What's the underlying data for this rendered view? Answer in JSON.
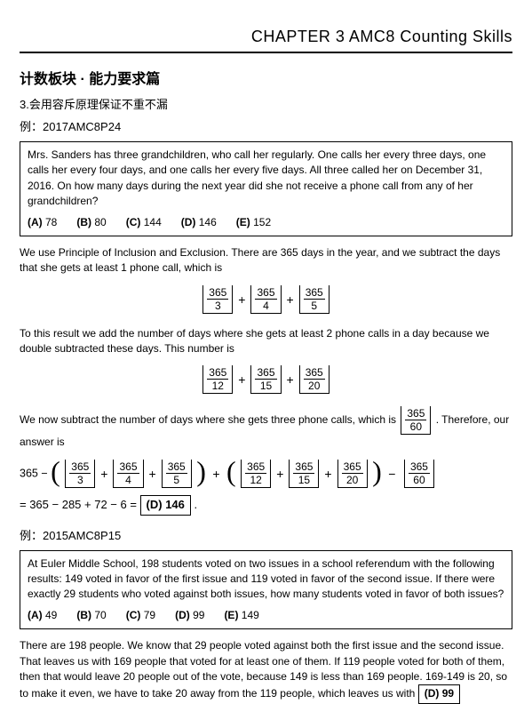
{
  "header": {
    "chapter": "CHAPTER 3 AMC8 Counting Skills"
  },
  "section": {
    "title": "计数板块 · 能力要求篇",
    "subpoint": "3.会用容斥原理保证不重不漏"
  },
  "ex1": {
    "label": "例：2017AMC8P24",
    "problem": "Mrs. Sanders has three grandchildren, who call her regularly. One calls her every three days, one calls her every four days, and one calls her every five days. All three called her on December 31, 2016. On how many days during the next year did she not receive a phone call from any of her grandchildren?",
    "choices": [
      {
        "lbl": "(A)",
        "val": "78"
      },
      {
        "lbl": "(B)",
        "val": "80"
      },
      {
        "lbl": "(C)",
        "val": "144"
      },
      {
        "lbl": "(D)",
        "val": "146"
      },
      {
        "lbl": "(E)",
        "val": "152"
      }
    ],
    "sol_p1": "We use Principle of Inclusion and Exclusion. There are 365 days in the year, and we subtract the days that she gets at least 1 phone call, which is",
    "floor1": [
      {
        "n": "365",
        "d": "3"
      },
      {
        "n": "365",
        "d": "4"
      },
      {
        "n": "365",
        "d": "5"
      }
    ],
    "sol_p2": "To this result we add the number of days where she gets at least 2 phone calls in a day because we double subtracted these days. This number is",
    "floor2": [
      {
        "n": "365",
        "d": "12"
      },
      {
        "n": "365",
        "d": "15"
      },
      {
        "n": "365",
        "d": "20"
      }
    ],
    "sol_p3a": "We now subtract the number of days where she gets three phone calls, which is ",
    "floor3": {
      "n": "365",
      "d": "60"
    },
    "sol_p3b": ". Therefore, our answer is",
    "expr_prefix": "365 −",
    "expr_grpA": [
      {
        "n": "365",
        "d": "3"
      },
      {
        "n": "365",
        "d": "4"
      },
      {
        "n": "365",
        "d": "5"
      }
    ],
    "expr_grpB": [
      {
        "n": "365",
        "d": "12"
      },
      {
        "n": "365",
        "d": "15"
      },
      {
        "n": "365",
        "d": "20"
      }
    ],
    "expr_last": {
      "n": "365",
      "d": "60"
    },
    "result_prefix": "= 365 − 285 + 72 − 6 = ",
    "result_box": "(D) 146",
    "result_suffix": "."
  },
  "ex2": {
    "label": "例：2015AMC8P15",
    "problem": "At Euler Middle School, 198 students voted on two issues in a school referendum with the following results: 149 voted in favor of the first issue and 119 voted in favor of the second issue. If there were exactly 29 students who voted against both issues, how many students voted in favor of both issues?",
    "choices": [
      {
        "lbl": "(A)",
        "val": "49"
      },
      {
        "lbl": "(B)",
        "val": "70"
      },
      {
        "lbl": "(C)",
        "val": "79"
      },
      {
        "lbl": "(D)",
        "val": "99"
      },
      {
        "lbl": "(E)",
        "val": "149"
      }
    ],
    "sol": "There are 198 people. We know that 29 people voted against both the first issue and the second issue. That leaves us with 169 people that voted for at least one of them. If 119 people voted for both of them, then that would leave 20 people out of the vote, because 149 is less than 169 people. 169-149 is 20, so to make it even, we have to take 20 away from the 119 people, which leaves us with ",
    "sol_box": "(D) 99"
  }
}
